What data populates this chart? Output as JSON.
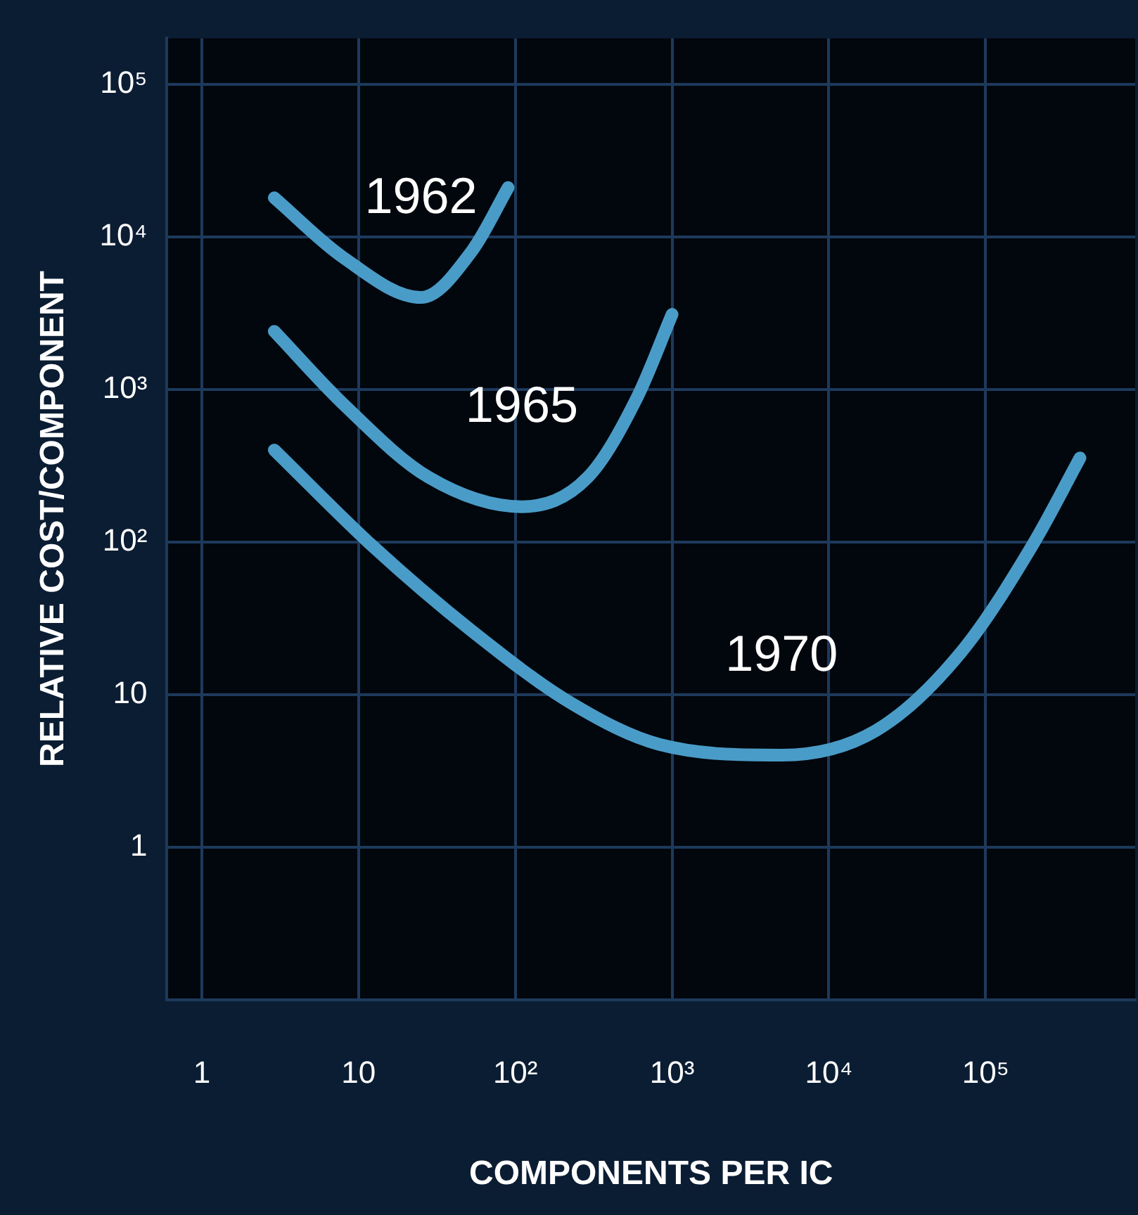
{
  "chart_data": {
    "type": "line",
    "xlabel": "COMPONENTS PER IC",
    "ylabel": "RELATIVE COST/COMPONENT",
    "log": "xy",
    "grid": true,
    "legend": false,
    "marker": "none",
    "line_style": "solid",
    "xlim": [
      0.6,
      900000
    ],
    "ylim": [
      0.1,
      200000
    ],
    "xticks": [
      1,
      10,
      {
        "value": 100,
        "label": "10²"
      },
      {
        "value": 1000,
        "label": "10³"
      },
      {
        "value": 10000,
        "label": "10⁴"
      },
      {
        "value": 100000,
        "label": "10⁵"
      }
    ],
    "yticks": [
      1,
      10,
      {
        "value": 100,
        "label": "10²"
      },
      {
        "value": 1000,
        "label": "10³"
      },
      {
        "value": 10000,
        "label": "10⁴"
      },
      {
        "value": 100000,
        "label": "10⁵"
      }
    ],
    "series": [
      {
        "name": "1962",
        "color": "#4a9cc8",
        "x": [
          2.9,
          8,
          25,
          53,
          90
        ],
        "values": [
          18000,
          7300,
          4000,
          8100,
          21000
        ]
      },
      {
        "name": "1965",
        "color": "#4a9cc8",
        "x": [
          2.9,
          8,
          28,
          110,
          290,
          600,
          1000
        ],
        "values": [
          2400,
          800,
          265,
          170,
          265,
          890,
          3100
        ]
      },
      {
        "name": "1970",
        "color": "#4a9cc8",
        "x": [
          2.9,
          12,
          53,
          230,
          830,
          5000,
          20000,
          70000,
          200000,
          400000
        ],
        "values": [
          400,
          96,
          26,
          8.7,
          4.7,
          4,
          5.8,
          19,
          96,
          355
        ]
      }
    ]
  }
}
